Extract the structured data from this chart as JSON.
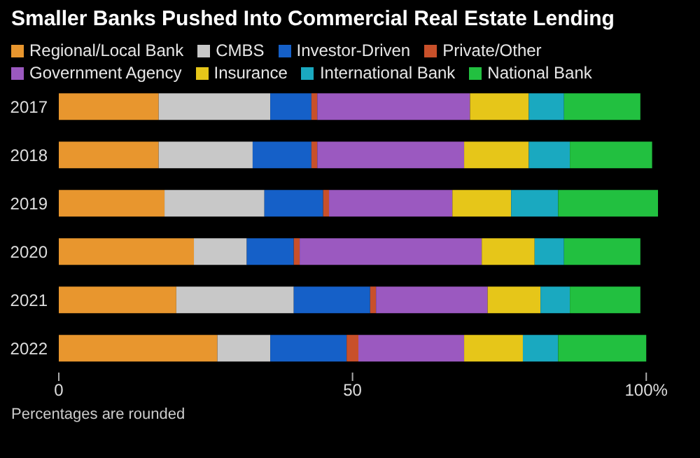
{
  "chart_data": {
    "type": "bar",
    "orientation": "horizontal",
    "stacked": true,
    "title": "Smaller Banks Pushed Into Commercial Real Estate Lending",
    "categories": [
      "2017",
      "2018",
      "2019",
      "2020",
      "2021",
      "2022"
    ],
    "series": [
      {
        "name": "Regional/Local Bank",
        "color": "#e8962e",
        "values": [
          17,
          17,
          18,
          23,
          20,
          27
        ]
      },
      {
        "name": "CMBS",
        "color": "#c8c8c8",
        "values": [
          19,
          16,
          17,
          9,
          20,
          9
        ]
      },
      {
        "name": "Investor-Driven",
        "color": "#1560c8",
        "values": [
          7,
          10,
          10,
          8,
          13,
          13
        ]
      },
      {
        "name": "Private/Other",
        "color": "#c8502a",
        "values": [
          1,
          1,
          1,
          1,
          1,
          2
        ]
      },
      {
        "name": "Government Agency",
        "color": "#9b59c0",
        "values": [
          26,
          25,
          21,
          31,
          19,
          18
        ]
      },
      {
        "name": "Insurance",
        "color": "#e6c619",
        "values": [
          10,
          11,
          10,
          9,
          9,
          10
        ]
      },
      {
        "name": "International Bank",
        "color": "#1aa9c0",
        "values": [
          6,
          7,
          8,
          5,
          5,
          6
        ]
      },
      {
        "name": "National Bank",
        "color": "#22c040",
        "values": [
          13,
          14,
          17,
          13,
          12,
          15
        ]
      }
    ],
    "xlim": [
      0,
      102
    ],
    "xticks": [
      0,
      50,
      {
        "value": 100,
        "label": "100%"
      }
    ],
    "grid": false,
    "legend": "top",
    "annotations": [
      "Percentages are rounded"
    ]
  }
}
